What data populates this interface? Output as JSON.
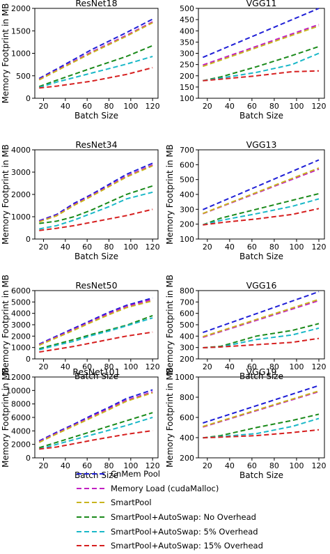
{
  "chart_data": [
    {
      "type": "line",
      "title": "ResNet18",
      "xlabel": "Batch Size",
      "ylabel": "Memory Footprint in MB",
      "xlim": [
        12,
        125
      ],
      "ylim": [
        0,
        2000
      ],
      "xticks": [
        20,
        40,
        60,
        80,
        100,
        120
      ],
      "yticks": [
        0,
        500,
        1000,
        1500,
        2000
      ],
      "grid": false,
      "series": [
        {
          "name": "CnMem Pool",
          "color": "#1f1fd6",
          "x": [
            16,
            32,
            64,
            96,
            120
          ],
          "y": [
            440,
            650,
            1080,
            1460,
            1760
          ]
        },
        {
          "name": "Memory Load (cudaMalloc)",
          "color": "#c21fc2",
          "x": [
            16,
            32,
            64,
            96,
            120
          ],
          "y": [
            420,
            620,
            1030,
            1400,
            1700
          ]
        },
        {
          "name": "SmartPool",
          "color": "#c8b41e",
          "x": [
            16,
            32,
            64,
            96,
            120
          ],
          "y": [
            410,
            610,
            1010,
            1380,
            1680
          ]
        },
        {
          "name": "SmartPool+AutoSwap: No Overhead",
          "color": "#1a8a1a",
          "x": [
            16,
            32,
            64,
            96,
            120
          ],
          "y": [
            260,
            400,
            670,
            930,
            1170
          ]
        },
        {
          "name": "SmartPool+AutoSwap: 5% Overhead",
          "color": "#1ab8c8",
          "x": [
            16,
            32,
            64,
            96,
            120
          ],
          "y": [
            240,
            360,
            560,
            760,
            930
          ]
        },
        {
          "name": "SmartPool+AutoSwap: 15% Overhead",
          "color": "#d61f1f",
          "x": [
            16,
            32,
            64,
            96,
            120
          ],
          "y": [
            230,
            270,
            380,
            530,
            680
          ]
        }
      ]
    },
    {
      "type": "line",
      "title": "VGG11",
      "xlabel": "Batch Size",
      "ylabel": "",
      "xlim": [
        12,
        125
      ],
      "ylim": [
        100,
        500
      ],
      "xticks": [
        20,
        40,
        60,
        80,
        100,
        120
      ],
      "yticks": [
        100,
        150,
        200,
        250,
        300,
        350,
        400,
        450,
        500
      ],
      "grid": false,
      "series": [
        {
          "name": "CnMem Pool",
          "color": "#1f1fd6",
          "x": [
            16,
            120
          ],
          "y": [
            282,
            500
          ]
        },
        {
          "name": "Memory Load (cudaMalloc)",
          "color": "#c21fc2",
          "x": [
            16,
            120
          ],
          "y": [
            248,
            428
          ]
        },
        {
          "name": "SmartPool",
          "color": "#c8b41e",
          "x": [
            16,
            120
          ],
          "y": [
            242,
            422
          ]
        },
        {
          "name": "SmartPool+AutoSwap: No Overhead",
          "color": "#1a8a1a",
          "x": [
            16,
            32,
            64,
            96,
            120
          ],
          "y": [
            178,
            195,
            240,
            290,
            330
          ]
        },
        {
          "name": "SmartPool+AutoSwap: 5% Overhead",
          "color": "#1ab8c8",
          "x": [
            16,
            32,
            64,
            96,
            120
          ],
          "y": [
            178,
            190,
            215,
            250,
            300
          ]
        },
        {
          "name": "SmartPool+AutoSwap: 15% Overhead",
          "color": "#d61f1f",
          "x": [
            16,
            32,
            64,
            96,
            120
          ],
          "y": [
            178,
            185,
            200,
            218,
            222
          ]
        }
      ]
    },
    {
      "type": "line",
      "title": "ResNet34",
      "xlabel": "Batch Size",
      "ylabel": "Memory Footprint in MB",
      "xlim": [
        12,
        125
      ],
      "ylim": [
        0,
        4000
      ],
      "xticks": [
        20,
        40,
        60,
        80,
        100,
        120
      ],
      "yticks": [
        0,
        1000,
        2000,
        3000,
        4000
      ],
      "grid": false,
      "series": [
        {
          "name": "CnMem Pool",
          "color": "#1f1fd6",
          "x": [
            16,
            32,
            48,
            64,
            80,
            96,
            120
          ],
          "y": [
            820,
            1100,
            1600,
            2000,
            2450,
            2900,
            3400
          ]
        },
        {
          "name": "Memory Load (cudaMalloc)",
          "color": "#c21fc2",
          "x": [
            16,
            32,
            48,
            64,
            80,
            96,
            120
          ],
          "y": [
            790,
            1060,
            1540,
            1950,
            2380,
            2820,
            3320
          ]
        },
        {
          "name": "SmartPool",
          "color": "#c8b41e",
          "x": [
            16,
            32,
            48,
            64,
            80,
            96,
            120
          ],
          "y": [
            770,
            1040,
            1510,
            1920,
            2350,
            2780,
            3280
          ]
        },
        {
          "name": "SmartPool+AutoSwap: No Overhead",
          "color": "#1a8a1a",
          "x": [
            16,
            32,
            48,
            64,
            80,
            96,
            120
          ],
          "y": [
            700,
            800,
            1000,
            1300,
            1650,
            2000,
            2380
          ]
        },
        {
          "name": "SmartPool+AutoSwap: 5% Overhead",
          "color": "#1ab8c8",
          "x": [
            16,
            32,
            48,
            64,
            80,
            96,
            120
          ],
          "y": [
            450,
            600,
            850,
            1150,
            1450,
            1800,
            2100
          ]
        },
        {
          "name": "SmartPool+AutoSwap: 15% Overhead",
          "color": "#d61f1f",
          "x": [
            16,
            32,
            48,
            64,
            80,
            96,
            120
          ],
          "y": [
            380,
            480,
            600,
            750,
            900,
            1050,
            1330
          ]
        }
      ]
    },
    {
      "type": "line",
      "title": "VGG13",
      "xlabel": "Batch Size",
      "ylabel": "Memory Footprint in MB",
      "xlim": [
        12,
        125
      ],
      "ylim": [
        100,
        700
      ],
      "xticks": [
        20,
        40,
        60,
        80,
        100,
        120
      ],
      "yticks": [
        100,
        200,
        300,
        400,
        500,
        600,
        700
      ],
      "grid": false,
      "series": [
        {
          "name": "CnMem Pool",
          "color": "#1f1fd6",
          "x": [
            16,
            120
          ],
          "y": [
            298,
            632
          ]
        },
        {
          "name": "Memory Load (cudaMalloc)",
          "color": "#c21fc2",
          "x": [
            16,
            120
          ],
          "y": [
            270,
            570
          ]
        },
        {
          "name": "SmartPool",
          "color": "#c8b41e",
          "x": [
            16,
            120
          ],
          "y": [
            272,
            578
          ]
        },
        {
          "name": "SmartPool+AutoSwap: No Overhead",
          "color": "#1a8a1a",
          "x": [
            16,
            32,
            64,
            96,
            120
          ],
          "y": [
            195,
            240,
            300,
            360,
            405
          ]
        },
        {
          "name": "SmartPool+AutoSwap: 5% Overhead",
          "color": "#1ab8c8",
          "x": [
            16,
            32,
            64,
            96,
            120
          ],
          "y": [
            195,
            225,
            270,
            320,
            370
          ]
        },
        {
          "name": "SmartPool+AutoSwap: 15% Overhead",
          "color": "#d61f1f",
          "x": [
            16,
            32,
            64,
            96,
            120
          ],
          "y": [
            195,
            210,
            235,
            265,
            305
          ]
        }
      ]
    },
    {
      "type": "line",
      "title": "ResNet50",
      "xlabel": "Batch Size",
      "ylabel": "Memory Footprint in MB",
      "xlim": [
        12,
        125
      ],
      "ylim": [
        0,
        6000
      ],
      "xticks": [
        20,
        40,
        60,
        80,
        100,
        120
      ],
      "yticks": [
        0,
        1000,
        2000,
        3000,
        4000,
        5000,
        6000
      ],
      "grid": false,
      "series": [
        {
          "name": "CnMem Pool",
          "color": "#1f1fd6",
          "x": [
            16,
            32,
            48,
            64,
            80,
            96,
            120
          ],
          "y": [
            1300,
            2000,
            2700,
            3400,
            4100,
            4700,
            5350
          ]
        },
        {
          "name": "Memory Load (cudaMalloc)",
          "color": "#c21fc2",
          "x": [
            16,
            32,
            48,
            64,
            80,
            96,
            120
          ],
          "y": [
            1250,
            1920,
            2600,
            3300,
            3980,
            4600,
            5220
          ]
        },
        {
          "name": "SmartPool",
          "color": "#c8b41e",
          "x": [
            16,
            32,
            48,
            64,
            80,
            96,
            120
          ],
          "y": [
            1200,
            1860,
            2520,
            3220,
            3880,
            4500,
            5100
          ]
        },
        {
          "name": "SmartPool+AutoSwap: No Overhead",
          "color": "#1a8a1a",
          "x": [
            16,
            32,
            48,
            64,
            80,
            96,
            120
          ],
          "y": [
            900,
            1300,
            1700,
            2150,
            2550,
            2950,
            3800
          ]
        },
        {
          "name": "SmartPool+AutoSwap: 5% Overhead",
          "color": "#1ab8c8",
          "x": [
            16,
            32,
            48,
            64,
            80,
            96,
            120
          ],
          "y": [
            800,
            1200,
            1550,
            2050,
            2450,
            2900,
            3600
          ]
        },
        {
          "name": "SmartPool+AutoSwap: 15% Overhead",
          "color": "#d61f1f",
          "x": [
            16,
            32,
            48,
            64,
            80,
            96,
            120
          ],
          "y": [
            600,
            850,
            1100,
            1400,
            1700,
            2000,
            2350
          ]
        }
      ]
    },
    {
      "type": "line",
      "title": "VGG16",
      "xlabel": "Batch Size",
      "ylabel": "Memory Footprint in MB",
      "xlim": [
        12,
        125
      ],
      "ylim": [
        200,
        800
      ],
      "xticks": [
        20,
        40,
        60,
        80,
        100,
        120
      ],
      "yticks": [
        200,
        300,
        400,
        500,
        600,
        700,
        800
      ],
      "grid": false,
      "series": [
        {
          "name": "CnMem Pool",
          "color": "#1f1fd6",
          "x": [
            16,
            120
          ],
          "y": [
            432,
            790
          ]
        },
        {
          "name": "Memory Load (cudaMalloc)",
          "color": "#c21fc2",
          "x": [
            16,
            120
          ],
          "y": [
            390,
            712
          ]
        },
        {
          "name": "SmartPool",
          "color": "#c8b41e",
          "x": [
            16,
            120
          ],
          "y": [
            395,
            722
          ]
        },
        {
          "name": "SmartPool+AutoSwap: No Overhead",
          "color": "#1a8a1a",
          "x": [
            16,
            32,
            64,
            96,
            120
          ],
          "y": [
            298,
            310,
            400,
            450,
            510
          ]
        },
        {
          "name": "SmartPool+AutoSwap: 5% Overhead",
          "color": "#1ab8c8",
          "x": [
            16,
            32,
            64,
            96,
            120
          ],
          "y": [
            298,
            305,
            370,
            410,
            470
          ]
        },
        {
          "name": "SmartPool+AutoSwap: 15% Overhead",
          "color": "#d61f1f",
          "x": [
            16,
            32,
            64,
            96,
            120
          ],
          "y": [
            298,
            305,
            325,
            345,
            380
          ]
        }
      ]
    },
    {
      "type": "line",
      "title": "ResNet101",
      "xlabel": "Batch Size",
      "ylabel": "Memory Footprint in MB",
      "xlim": [
        12,
        125
      ],
      "ylim": [
        0,
        12000
      ],
      "xticks": [
        20,
        40,
        60,
        80,
        100,
        120
      ],
      "yticks": [
        0,
        2000,
        4000,
        6000,
        8000,
        10000,
        12000
      ],
      "grid": false,
      "series": [
        {
          "name": "CnMem Pool",
          "color": "#1f1fd6",
          "x": [
            16,
            32,
            48,
            64,
            80,
            96,
            120
          ],
          "y": [
            2500,
            3800,
            5000,
            6300,
            7500,
            8800,
            10100
          ]
        },
        {
          "name": "Memory Load (cudaMalloc)",
          "color": "#c21fc2",
          "x": [
            16,
            32,
            48,
            64,
            80,
            96,
            120
          ],
          "y": [
            2400,
            3650,
            4850,
            6100,
            7300,
            8550,
            9800
          ]
        },
        {
          "name": "SmartPool",
          "color": "#c8b41e",
          "x": [
            16,
            32,
            48,
            64,
            80,
            96,
            120
          ],
          "y": [
            2300,
            3550,
            4750,
            5950,
            7150,
            8400,
            9650
          ]
        },
        {
          "name": "SmartPool+AutoSwap: No Overhead",
          "color": "#1a8a1a",
          "x": [
            16,
            32,
            48,
            64,
            80,
            96,
            120
          ],
          "y": [
            1500,
            2300,
            3100,
            3900,
            4700,
            5500,
            6700
          ]
        },
        {
          "name": "SmartPool+AutoSwap: 5% Overhead",
          "color": "#1ab8c8",
          "x": [
            16,
            32,
            48,
            64,
            80,
            96,
            120
          ],
          "y": [
            1300,
            2000,
            2700,
            3400,
            4100,
            4800,
            6000
          ]
        },
        {
          "name": "SmartPool+AutoSwap: 15% Overhead",
          "color": "#d61f1f",
          "x": [
            16,
            32,
            48,
            64,
            80,
            96,
            120
          ],
          "y": [
            1300,
            1600,
            2100,
            2600,
            3050,
            3500,
            4050
          ]
        }
      ]
    },
    {
      "type": "line",
      "title": "VGG19",
      "xlabel": "Batch Size",
      "ylabel": "Memory Footprint in MB",
      "xlim": [
        12,
        125
      ],
      "ylim": [
        200,
        1000
      ],
      "xticks": [
        20,
        40,
        60,
        80,
        100,
        120
      ],
      "yticks": [
        200,
        400,
        600,
        800,
        1000
      ],
      "grid": false,
      "series": [
        {
          "name": "CnMem Pool",
          "color": "#1f1fd6",
          "x": [
            16,
            120
          ],
          "y": [
            545,
            915
          ]
        },
        {
          "name": "Memory Load (cudaMalloc)",
          "color": "#c21fc2",
          "x": [
            16,
            120
          ],
          "y": [
            505,
            855
          ]
        },
        {
          "name": "SmartPool",
          "color": "#c8b41e",
          "x": [
            16,
            120
          ],
          "y": [
            510,
            862
          ]
        },
        {
          "name": "SmartPool+AutoSwap: No Overhead",
          "color": "#1a8a1a",
          "x": [
            16,
            32,
            64,
            96,
            120
          ],
          "y": [
            398,
            420,
            500,
            570,
            632
          ]
        },
        {
          "name": "SmartPool+AutoSwap: 5% Overhead",
          "color": "#1ab8c8",
          "x": [
            16,
            32,
            64,
            96,
            120
          ],
          "y": [
            398,
            410,
            440,
            510,
            590
          ]
        },
        {
          "name": "SmartPool+AutoSwap: 15% Overhead",
          "color": "#d61f1f",
          "x": [
            16,
            32,
            64,
            96,
            120
          ],
          "y": [
            398,
            405,
            420,
            450,
            478
          ]
        }
      ]
    }
  ],
  "legend": {
    "items": [
      {
        "label": "CnMem Pool",
        "color": "#1f1fd6"
      },
      {
        "label": "Memory Load (cudaMalloc)",
        "color": "#c21fc2"
      },
      {
        "label": "SmartPool",
        "color": "#c8b41e"
      },
      {
        "label": "SmartPool+AutoSwap: No Overhead",
        "color": "#1a8a1a"
      },
      {
        "label": "SmartPool+AutoSwap: 5% Overhead",
        "color": "#1ab8c8"
      },
      {
        "label": "SmartPool+AutoSwap: 15% Overhead",
        "color": "#d61f1f"
      }
    ]
  }
}
